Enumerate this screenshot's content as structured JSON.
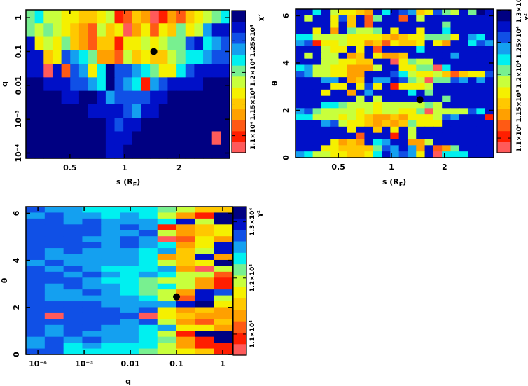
{
  "chart_data": [
    {
      "type": "heatmap",
      "panel": "top-left",
      "xlabel": {
        "main": "s (R",
        "sub": "E",
        "end": ")"
      },
      "ylabel": "q",
      "xscale": "log",
      "yscale": "log",
      "xlim": [
        0.286,
        3.8
      ],
      "ylim": [
        7e-05,
        1.7
      ],
      "xticks": [
        {
          "value": 0.5,
          "label": "0.5"
        },
        {
          "value": 1,
          "label": "1"
        },
        {
          "value": 2,
          "label": "2"
        }
      ],
      "yticks": [
        {
          "value": 1,
          "label": "1"
        },
        {
          "value": 0.1,
          "label": "0.1"
        },
        {
          "value": 0.01,
          "label": "0.01"
        },
        {
          "value": 0.001,
          "label": "10⁻³"
        },
        {
          "value": 0.0001,
          "label": "10⁻⁴"
        }
      ],
      "level_scale": "hex digit 0 (lowest χ², light red) … c (highest χ², navy)",
      "rows_top_to_bottom": [
        "78665544561243013245678",
        "767654326450352547569bb",
        "b56574324415565677ab89a",
        "bb45a9873326454467889aa",
        "bb0b2a958caa987558abbbb",
        "ccbbbaa98ca9819abbbbccc",
        "ccccbbccb9aaaabbccccccc",
        "cccccccbbbba9bbcccccccc",
        "cccccccccbabbcccccccccc",
        "cccccccccbbbccccccccc0c",
        "cccccccccbbcccccccccccc"
      ],
      "best_fit": {
        "x": 1.45,
        "y": 0.1
      },
      "colorbar": {
        "label": "χ²",
        "range": [
          1.073,
          1.298
        ],
        "ticks": [
          {
            "value": 1.1,
            "label": "1.1×10⁴"
          },
          {
            "value": 1.15,
            "label": "1.15×10⁴"
          },
          {
            "value": 1.2,
            "label": "1.2×10⁴"
          },
          {
            "value": 1.25,
            "label": "1.25×10⁴"
          }
        ]
      }
    },
    {
      "type": "heatmap",
      "panel": "top-right",
      "xlabel": {
        "main": "s (R",
        "sub": "E",
        "end": ")"
      },
      "ylabel": "θ",
      "xscale": "log",
      "yscale": "linear",
      "xlim": [
        0.286,
        3.8
      ],
      "ylim": [
        0,
        6.28
      ],
      "xticks": [
        {
          "value": 0.5,
          "label": "0.5"
        },
        {
          "value": 1,
          "label": "1"
        },
        {
          "value": 2,
          "label": "2"
        }
      ],
      "yticks": [
        {
          "value": 0,
          "label": "0"
        },
        {
          "value": 2,
          "label": "2"
        },
        {
          "value": 4,
          "label": "4"
        },
        {
          "value": 6,
          "label": "6"
        }
      ],
      "level_scale": "hex digit 0 (lowest χ², light red) … c (highest χ², navy)",
      "rows_top_to_bottom": [
        "bb8b65543b8ba945a76b7cb",
        "b6bb5a4b27bb2b6bbbbbbbb",
        "bbbb5b4b2bbbbbbbb7bbbbb",
        "bb5b3b7667b5bb5bb8bbbbb",
        "8866665555434557775b98b",
        "9a1556553425445b53bb8a9",
        "bbb655b5b2bbbb8bbbbbbbb",
        "b6b66b34b5334bbbbb9bbbb",
        "bbb665544bb05766bbbbbbb",
        "8966553336bb557708bbbbb",
        "a9665533bbba8655642455a",
        "bbb99b34b99ba76077a9b9b",
        "bbbb55b5a5b15556bbbbbbb",
        "bbb5bb3b9bbbb8b7bbbbbbb",
        "bbbbbbb6b6bbbbbbb7bbbbb",
        "bbb88766656666676bbbbbb",
        "9a766665656655706666a8b",
        "88666565433435556a9bbb1",
        "bbb9a655434347555bbbbbb",
        "bbbbbb5bb4b5b6bbbbbbbbb",
        "bbbbbbb2bbb1b6bbbbbbbbb",
        "bbbb5343b89bb336bbbbbbb",
        "bbb5544447a9b93b237bbbb",
        "9866554458b9a95b0888bbb"
      ],
      "best_fit": {
        "x": 1.45,
        "y": 2.45
      },
      "colorbar": {
        "label": "χ²",
        "range": [
          1.077,
          1.301
        ],
        "ticks": [
          {
            "value": 1.1,
            "label": "1.1×10⁴"
          },
          {
            "value": 1.15,
            "label": "1.15×10⁴"
          },
          {
            "value": 1.2,
            "label": "1.2×10⁴"
          },
          {
            "value": 1.25,
            "label": "1.25×10⁴"
          },
          {
            "value": 1.3,
            "label": "1.3×10"
          }
        ]
      }
    },
    {
      "type": "heatmap",
      "panel": "bottom-left",
      "xlabel": {
        "main": "q",
        "sub": "",
        "end": ""
      },
      "ylabel": "θ",
      "xscale": "log",
      "yscale": "linear",
      "xlim": [
        5.5e-05,
        1.63
      ],
      "ylim": [
        0,
        6.28
      ],
      "xticks": [
        {
          "value": 0.0001,
          "label": "10⁻⁴"
        },
        {
          "value": 0.001,
          "label": "10⁻³"
        },
        {
          "value": 0.01,
          "label": "0.01"
        },
        {
          "value": 0.1,
          "label": "0.1"
        },
        {
          "value": 1,
          "label": "1"
        }
      ],
      "yticks": [
        {
          "value": 0,
          "label": "0"
        },
        {
          "value": 2,
          "label": "2"
        },
        {
          "value": 4,
          "label": "4"
        },
        {
          "value": 6,
          "label": "6"
        }
      ],
      "level_scale": "hex digit 0 (lowest χ², light red) … c (highest χ², navy)",
      "rows_top_to_bottom": [
        "a9988887644",
        "9a99898631c",
        "aa9a9998b6c",
        "aaaa9a91345",
        "aaaa99a6345",
        "aaa99a90253",
        "aaaa9a9835b",
        "a9a9998946b",
        "a99999834b3",
        "9a99998645c",
        "a9a98889306",
        "aa9a9898662",
        "aaa98876631",
        "a9a99878631",
        "a99a98763ba",
        "a99999862b6",
        "aaaa9999bc5",
        "aaaaa9a5343",
        "a0aaaa05433",
        "aaaaa9a6324",
        "a9aa9989553",
        "a9a999861cc",
        "9a9a998731c",
        "9a898886311",
        "aa888876541"
      ],
      "best_fit": {
        "x": 0.1,
        "y": 2.45
      },
      "colorbar": {
        "label": "χ²",
        "range": [
          1.0625,
          1.327
        ],
        "ticks": [
          {
            "value": 1.1,
            "label": "1.1×10⁴"
          },
          {
            "value": 1.2,
            "label": "1.2×10⁴"
          },
          {
            "value": 1.3,
            "label": "1.3×10⁴"
          }
        ]
      }
    }
  ],
  "colormap": [
    "#ff5a5a",
    "#ff1e00",
    "#ff5a14",
    "#ffa000",
    "#ffc800",
    "#f5f000",
    "#c8ff3c",
    "#78f090",
    "#00f0f0",
    "#14a0f0",
    "#1050e6",
    "#0010c8",
    "#000082"
  ]
}
